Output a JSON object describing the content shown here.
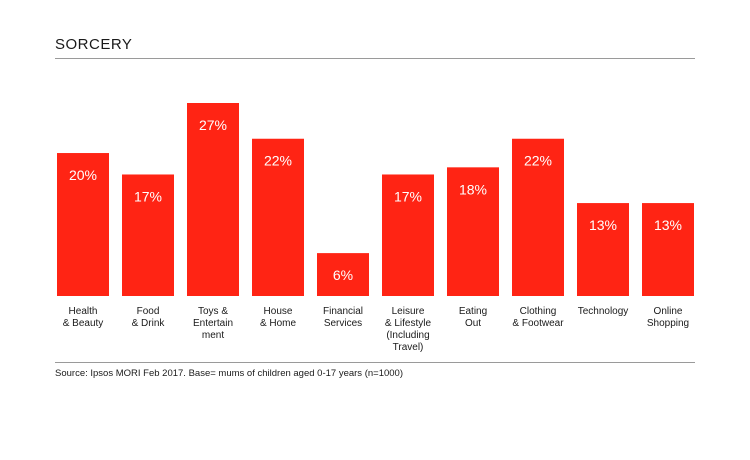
{
  "chart_data": {
    "type": "bar",
    "title": "SORCERY",
    "categories": [
      [
        "Health",
        "& Beauty"
      ],
      [
        "Food",
        "& Drink"
      ],
      [
        "Toys &",
        "Entertain",
        "ment"
      ],
      [
        "House",
        "& Home"
      ],
      [
        "Financial",
        "Services"
      ],
      [
        "Leisure",
        "& Lifestyle",
        "(Including",
        "Travel)"
      ],
      [
        "Eating",
        "Out"
      ],
      [
        "Clothing",
        "& Footwear"
      ],
      [
        "Technology"
      ],
      [
        "Online",
        "Shopping"
      ]
    ],
    "values": [
      20,
      17,
      27,
      22,
      6,
      17,
      18,
      22,
      13,
      13
    ],
    "value_labels": [
      "20%",
      "17%",
      "27%",
      "22%",
      "6%",
      "17%",
      "18%",
      "22%",
      "13%",
      "13%"
    ],
    "bar_color": "#ff2414",
    "ylim": [
      0,
      27
    ],
    "grid": false,
    "legend": "none",
    "source": "Source: Ipsos MORI Feb 2017. Base= mums of children aged 0-17 years (n=1000)"
  }
}
